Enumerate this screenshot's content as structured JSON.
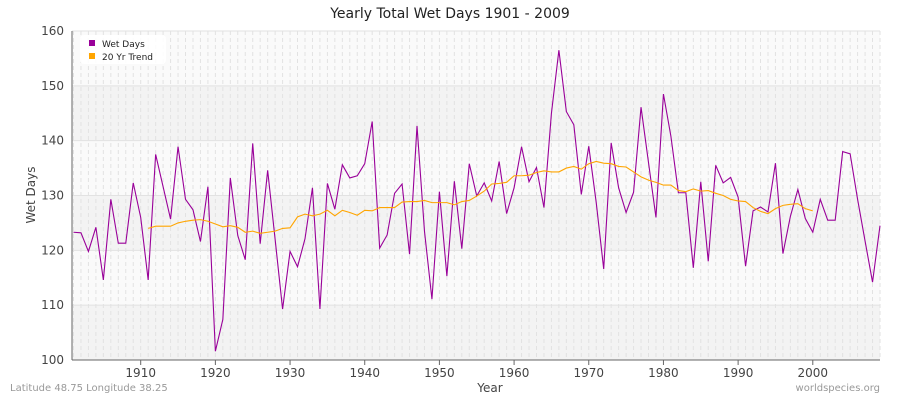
{
  "chart_data": {
    "type": "line",
    "title": "Yearly Total Wet Days 1901 - 2009",
    "xlabel": "Year",
    "ylabel": "Wet Days",
    "xlim": [
      1901,
      2009
    ],
    "ylim": [
      100,
      160
    ],
    "xticks": [
      1910,
      1920,
      1930,
      1940,
      1950,
      1960,
      1970,
      1980,
      1990,
      2000
    ],
    "yticks": [
      100,
      110,
      120,
      130,
      140,
      150,
      160
    ],
    "grid": true,
    "legend_placement": "top-left",
    "series": [
      {
        "name": "Wet Days",
        "color": "#990099",
        "x_start": 1901,
        "values": [
          123.3,
          123.2,
          119.8,
          124.2,
          114.6,
          129.3,
          121.3,
          121.3,
          132.3,
          126,
          114.6,
          137.5,
          131.6,
          125.7,
          138.9,
          129.3,
          127.4,
          121.6,
          131.6,
          101.6,
          107.4,
          133.2,
          122.7,
          118.3,
          139.5,
          121.2,
          134.6,
          122,
          109.3,
          119.8,
          117,
          122.1,
          131.4,
          109.3,
          132.2,
          127.5,
          135.6,
          133.2,
          133.6,
          135.8,
          143.5,
          120.4,
          122.8,
          130.4,
          132.1,
          119.3,
          142.7,
          123.5,
          111.1,
          130.7,
          115.3,
          132.6,
          120.3,
          135.8,
          129.9,
          132.3,
          129,
          136.2,
          126.7,
          131.4,
          138.9,
          132.5,
          135.1,
          127.8,
          145,
          156.5,
          145.3,
          142.9,
          130.2,
          139,
          128.7,
          116.6,
          139.6,
          131.4,
          126.9,
          130.6,
          146.1,
          136,
          126,
          148.5,
          140.8,
          130.5,
          130.5,
          116.8,
          132.5,
          118,
          135.5,
          132.3,
          133.3,
          129.7,
          117.1,
          127.2,
          127.9,
          127,
          135.9,
          119.4,
          126.2,
          131.1,
          125.8,
          123.3,
          129.3,
          125.5,
          125.5,
          138,
          137.6,
          129.3,
          121.7,
          114.2,
          124.5
        ]
      },
      {
        "name": "20 Yr Trend",
        "color": "#ffa500",
        "x_start": 1911,
        "values": [
          124,
          124.4,
          124.4,
          124.4,
          125,
          125.3,
          125.5,
          125.6,
          125.3,
          124.8,
          124.3,
          124.5,
          124.2,
          123.3,
          123.5,
          123.1,
          123.3,
          123.5,
          124,
          124.1,
          126.1,
          126.6,
          126.3,
          126.6,
          127.3,
          126.3,
          127.3,
          126.9,
          126.4,
          127.3,
          127.2,
          127.8,
          127.8,
          127.8,
          128.8,
          128.9,
          128.9,
          129.1,
          128.7,
          128.7,
          128.7,
          128.3,
          128.9,
          129.1,
          129.9,
          130.8,
          132.1,
          132.2,
          132.4,
          133.6,
          133.6,
          133.7,
          134.2,
          134.5,
          134.3,
          134.3,
          135,
          135.3,
          134.8,
          135.8,
          136.2,
          135.9,
          135.8,
          135.3,
          135.2,
          134.3,
          133.4,
          132.8,
          132.4,
          131.9,
          131.9,
          130.9,
          130.7,
          131.2,
          130.8,
          130.9,
          130.4,
          130,
          129.3,
          129,
          128.9,
          127.8,
          127.1,
          126.7,
          127.6,
          128.2,
          128.4,
          128.5,
          127.6,
          127.2
        ]
      }
    ]
  },
  "footer": {
    "location": "Latitude 48.75 Longitude 38.25",
    "source": "worldspecies.org"
  }
}
